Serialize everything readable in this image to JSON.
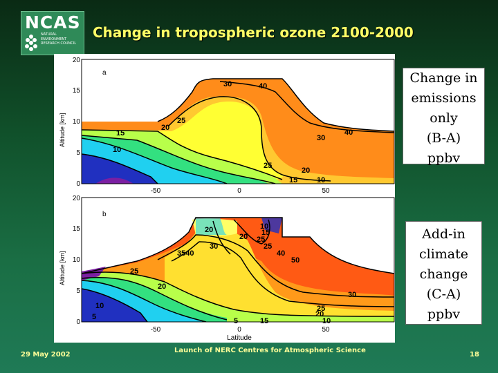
{
  "logo": {
    "name": "NCAS",
    "subtitle_lines": [
      "NATURAL",
      "ENVIRONMENT",
      "RESEARCH COUNCIL"
    ]
  },
  "slide_title": "Change in tropospheric ozone 2100-2000",
  "panel_a": {
    "label": "a",
    "ylabel": "Altitude [km]",
    "y_ticks": [
      "0",
      "5",
      "10",
      "15",
      "20"
    ],
    "x_ticks": [
      "-50",
      "0",
      "50"
    ],
    "contour_labels": [
      "30",
      "40",
      "25",
      "20",
      "15",
      "10",
      "30",
      "40",
      "25",
      "20",
      "15",
      "10"
    ]
  },
  "panel_b": {
    "label": "b",
    "ylabel": "Altitude [km]",
    "y_ticks": [
      "0",
      "5",
      "10",
      "15",
      "20"
    ],
    "x_ticks": [
      "-50",
      "0",
      "50"
    ],
    "xlabel": "Latitude",
    "contour_labels": [
      "20",
      "20",
      "10",
      "15",
      "25",
      "30",
      "3540",
      "25",
      "40",
      "50",
      "20",
      "25",
      "10",
      "5",
      "30",
      "25",
      "20",
      "10",
      "15",
      "5"
    ]
  },
  "box_a_lines": [
    "Change in",
    "emissions",
    "only",
    "(B-A)",
    "ppbv"
  ],
  "box_b_lines": [
    "Add-in",
    "climate",
    "change",
    "(C-A)",
    "ppbv"
  ],
  "footer": {
    "date": "29 May 2002",
    "center": "Launch of NERC Centres for Atmospheric Science",
    "page": "18"
  },
  "colors": {
    "title": "#ffff66",
    "footer": "#ffff99"
  }
}
